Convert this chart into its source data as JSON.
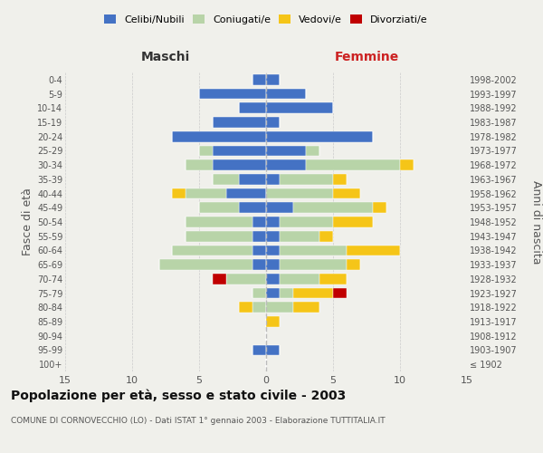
{
  "age_groups": [
    "100+",
    "95-99",
    "90-94",
    "85-89",
    "80-84",
    "75-79",
    "70-74",
    "65-69",
    "60-64",
    "55-59",
    "50-54",
    "45-49",
    "40-44",
    "35-39",
    "30-34",
    "25-29",
    "20-24",
    "15-19",
    "10-14",
    "5-9",
    "0-4"
  ],
  "birth_years": [
    "≤ 1902",
    "1903-1907",
    "1908-1912",
    "1913-1917",
    "1918-1922",
    "1923-1927",
    "1928-1932",
    "1933-1937",
    "1938-1942",
    "1943-1947",
    "1948-1952",
    "1953-1957",
    "1958-1962",
    "1963-1967",
    "1968-1972",
    "1973-1977",
    "1978-1982",
    "1983-1987",
    "1988-1992",
    "1993-1997",
    "1998-2002"
  ],
  "maschi_celibi": [
    0,
    1,
    0,
    0,
    0,
    0,
    0,
    1,
    1,
    1,
    1,
    2,
    3,
    2,
    4,
    4,
    7,
    4,
    2,
    5,
    1
  ],
  "maschi_coniugati": [
    0,
    0,
    0,
    0,
    1,
    1,
    3,
    7,
    6,
    5,
    5,
    3,
    3,
    2,
    2,
    1,
    0,
    0,
    0,
    0,
    0
  ],
  "maschi_vedovi": [
    0,
    0,
    0,
    0,
    1,
    0,
    0,
    0,
    0,
    0,
    0,
    0,
    1,
    0,
    0,
    0,
    0,
    0,
    0,
    0,
    0
  ],
  "maschi_divorziati": [
    0,
    0,
    0,
    0,
    0,
    0,
    1,
    0,
    0,
    0,
    0,
    0,
    0,
    0,
    0,
    0,
    0,
    0,
    0,
    0,
    0
  ],
  "femmine_celibi": [
    0,
    1,
    0,
    0,
    0,
    1,
    1,
    1,
    1,
    1,
    1,
    2,
    0,
    1,
    3,
    3,
    8,
    1,
    5,
    3,
    1
  ],
  "femmine_coniugati": [
    0,
    0,
    0,
    0,
    2,
    1,
    3,
    5,
    5,
    3,
    4,
    6,
    5,
    4,
    7,
    1,
    0,
    0,
    0,
    0,
    0
  ],
  "femmine_vedovi": [
    0,
    0,
    0,
    1,
    2,
    3,
    2,
    1,
    4,
    1,
    3,
    1,
    2,
    1,
    1,
    0,
    0,
    0,
    0,
    0,
    0
  ],
  "femmine_divorziati": [
    0,
    0,
    0,
    0,
    0,
    1,
    0,
    0,
    0,
    0,
    0,
    0,
    0,
    0,
    0,
    0,
    0,
    0,
    0,
    0,
    0
  ],
  "color_celibi": "#4472c4",
  "color_coniugati": "#b8d4a8",
  "color_vedovi": "#f5c518",
  "color_divorziati": "#c00000",
  "title": "Popolazione per età, sesso e stato civile - 2003",
  "subtitle": "COMUNE DI CORNOVECCHIO (LO) - Dati ISTAT 1° gennaio 2003 - Elaborazione TUTTITALIA.IT",
  "label_maschi": "Maschi",
  "label_femmine": "Femmine",
  "ylabel_left": "Fasce di età",
  "ylabel_right": "Anni di nascita",
  "xlim": 15,
  "bg_color": "#f0f0eb",
  "legend_celibi": "Celibi/Nubili",
  "legend_coniugati": "Coniugati/e",
  "legend_vedovi": "Vedovi/e",
  "legend_divorziati": "Divorziati/e"
}
